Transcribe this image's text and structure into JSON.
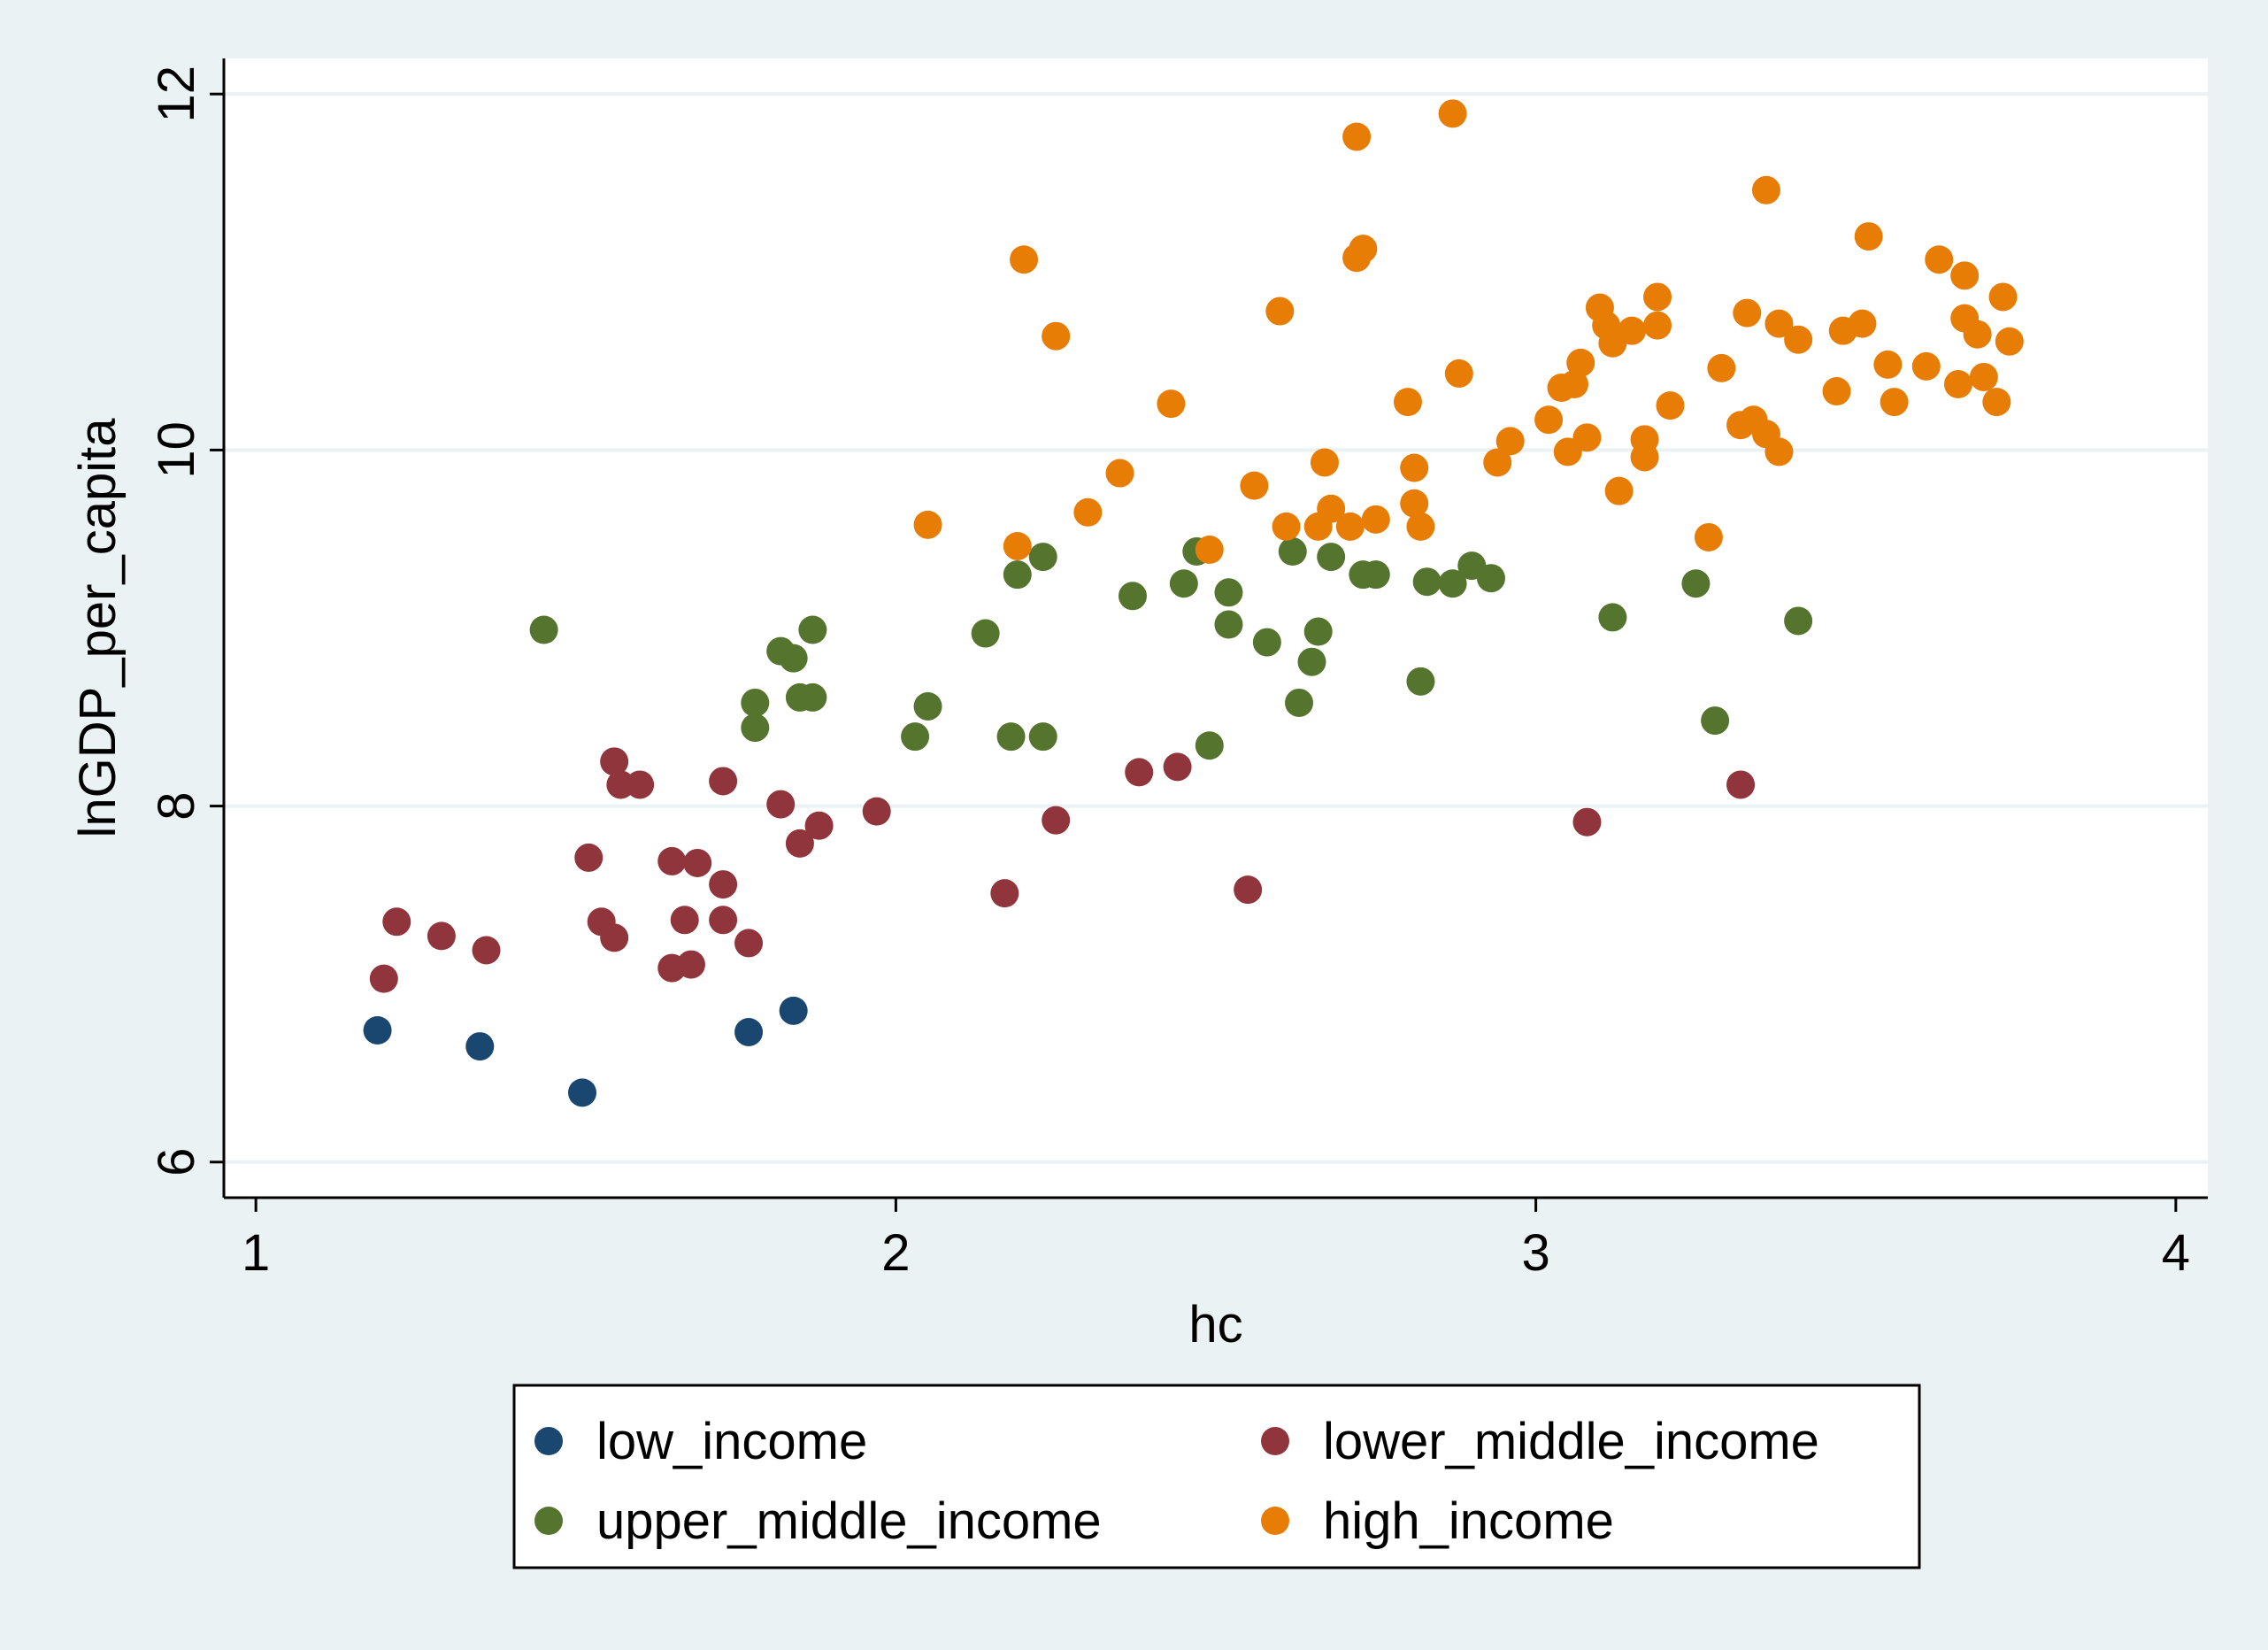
{
  "chart_data": {
    "type": "scatter",
    "title": "",
    "xlabel": "hc",
    "ylabel": "lnGDP_per_capita",
    "xlim": [
      0.95,
      4.05
    ],
    "ylim": [
      5.8,
      12.2
    ],
    "xticks": [
      1,
      2,
      3,
      4
    ],
    "yticks": [
      6,
      8,
      10,
      12
    ],
    "grid": "horizontal",
    "legend_position": "bottom",
    "legend_columns": 2,
    "series": [
      {
        "name": "low_income",
        "color": "#1a476f",
        "points": [
          [
            1.19,
            6.74
          ],
          [
            1.35,
            6.65
          ],
          [
            1.51,
            6.39
          ],
          [
            1.77,
            6.73
          ],
          [
            1.84,
            6.85
          ]
        ]
      },
      {
        "name": "lower_middle_income",
        "color": "#90353b",
        "points": [
          [
            1.2,
            7.03
          ],
          [
            1.22,
            7.35
          ],
          [
            1.29,
            7.27
          ],
          [
            1.36,
            7.19
          ],
          [
            1.52,
            7.71
          ],
          [
            1.54,
            7.35
          ],
          [
            1.56,
            7.26
          ],
          [
            1.56,
            8.25
          ],
          [
            1.57,
            8.12
          ],
          [
            1.6,
            8.12
          ],
          [
            1.65,
            7.69
          ],
          [
            1.65,
            7.09
          ],
          [
            1.67,
            7.36
          ],
          [
            1.68,
            7.11
          ],
          [
            1.69,
            7.68
          ],
          [
            1.73,
            7.56
          ],
          [
            1.73,
            7.36
          ],
          [
            1.73,
            8.14
          ],
          [
            1.77,
            7.23
          ],
          [
            1.82,
            8.01
          ],
          [
            1.85,
            7.79
          ],
          [
            1.88,
            7.89
          ],
          [
            1.97,
            7.97
          ],
          [
            2.17,
            7.51
          ],
          [
            2.25,
            7.92
          ],
          [
            2.38,
            8.19
          ],
          [
            2.44,
            8.22
          ],
          [
            2.55,
            7.53
          ],
          [
            3.08,
            7.91
          ],
          [
            3.32,
            8.12
          ]
        ]
      },
      {
        "name": "upper_middle_income",
        "color": "#55752f",
        "points": [
          [
            1.45,
            8.99
          ],
          [
            1.78,
            8.58
          ],
          [
            1.78,
            8.44
          ],
          [
            1.82,
            8.87
          ],
          [
            1.84,
            8.83
          ],
          [
            1.85,
            8.61
          ],
          [
            1.87,
            8.61
          ],
          [
            1.87,
            8.99
          ],
          [
            2.03,
            8.39
          ],
          [
            2.05,
            8.56
          ],
          [
            2.14,
            8.97
          ],
          [
            2.18,
            8.39
          ],
          [
            2.19,
            9.3
          ],
          [
            2.23,
            9.4
          ],
          [
            2.23,
            8.39
          ],
          [
            2.37,
            9.18
          ],
          [
            2.45,
            9.25
          ],
          [
            2.47,
            9.43
          ],
          [
            2.49,
            8.34
          ],
          [
            2.52,
            9.02
          ],
          [
            2.52,
            9.2
          ],
          [
            2.58,
            8.92
          ],
          [
            2.62,
            9.43
          ],
          [
            2.63,
            8.58
          ],
          [
            2.65,
            8.81
          ],
          [
            2.66,
            8.98
          ],
          [
            2.68,
            9.4
          ],
          [
            2.73,
            9.3
          ],
          [
            2.75,
            9.3
          ],
          [
            2.82,
            8.7
          ],
          [
            2.83,
            9.26
          ],
          [
            2.87,
            9.25
          ],
          [
            2.9,
            9.35
          ],
          [
            2.93,
            9.28
          ],
          [
            3.12,
            9.06
          ],
          [
            3.25,
            9.25
          ],
          [
            3.28,
            8.48
          ],
          [
            3.41,
            9.04
          ]
        ]
      },
      {
        "name": "high_income",
        "color": "#e87d05",
        "points": [
          [
            2.05,
            9.58
          ],
          [
            2.19,
            9.46
          ],
          [
            2.2,
            11.07
          ],
          [
            2.25,
            10.64
          ],
          [
            2.3,
            9.65
          ],
          [
            2.35,
            9.87
          ],
          [
            2.43,
            10.26
          ],
          [
            2.49,
            9.44
          ],
          [
            2.56,
            9.8
          ],
          [
            2.6,
            10.78
          ],
          [
            2.61,
            9.57
          ],
          [
            2.66,
            9.57
          ],
          [
            2.67,
            9.93
          ],
          [
            2.68,
            9.67
          ],
          [
            2.71,
            9.57
          ],
          [
            2.72,
            11.76
          ],
          [
            2.72,
            11.08
          ],
          [
            2.73,
            11.13
          ],
          [
            2.75,
            9.61
          ],
          [
            2.8,
            10.27
          ],
          [
            2.81,
            9.9
          ],
          [
            2.81,
            9.7
          ],
          [
            2.82,
            9.57
          ],
          [
            2.87,
            11.89
          ],
          [
            2.88,
            10.43
          ],
          [
            2.94,
            9.93
          ],
          [
            2.96,
            10.05
          ],
          [
            3.02,
            10.17
          ],
          [
            3.04,
            10.35
          ],
          [
            3.05,
            9.99
          ],
          [
            3.06,
            10.37
          ],
          [
            3.07,
            10.49
          ],
          [
            3.08,
            10.07
          ],
          [
            3.1,
            10.8
          ],
          [
            3.11,
            10.7
          ],
          [
            3.12,
            10.6
          ],
          [
            3.13,
            9.77
          ],
          [
            3.15,
            10.67
          ],
          [
            3.17,
            10.06
          ],
          [
            3.17,
            9.96
          ],
          [
            3.19,
            10.7
          ],
          [
            3.19,
            10.86
          ],
          [
            3.21,
            10.25
          ],
          [
            3.29,
            10.46
          ],
          [
            3.27,
            9.51
          ],
          [
            3.32,
            10.14
          ],
          [
            3.33,
            10.77
          ],
          [
            3.34,
            10.17
          ],
          [
            3.36,
            10.09
          ],
          [
            3.36,
            11.46
          ],
          [
            3.38,
            10.71
          ],
          [
            3.38,
            9.99
          ],
          [
            3.41,
            10.62
          ],
          [
            3.47,
            10.33
          ],
          [
            3.48,
            10.67
          ],
          [
            3.51,
            10.71
          ],
          [
            3.52,
            11.2
          ],
          [
            3.55,
            10.48
          ],
          [
            3.56,
            10.27
          ],
          [
            3.61,
            10.47
          ],
          [
            3.63,
            11.07
          ],
          [
            3.66,
            10.37
          ],
          [
            3.67,
            10.74
          ],
          [
            3.67,
            10.98
          ],
          [
            3.69,
            10.65
          ],
          [
            3.7,
            10.41
          ],
          [
            3.72,
            10.27
          ],
          [
            3.73,
            10.86
          ],
          [
            3.74,
            10.61
          ]
        ]
      }
    ]
  }
}
